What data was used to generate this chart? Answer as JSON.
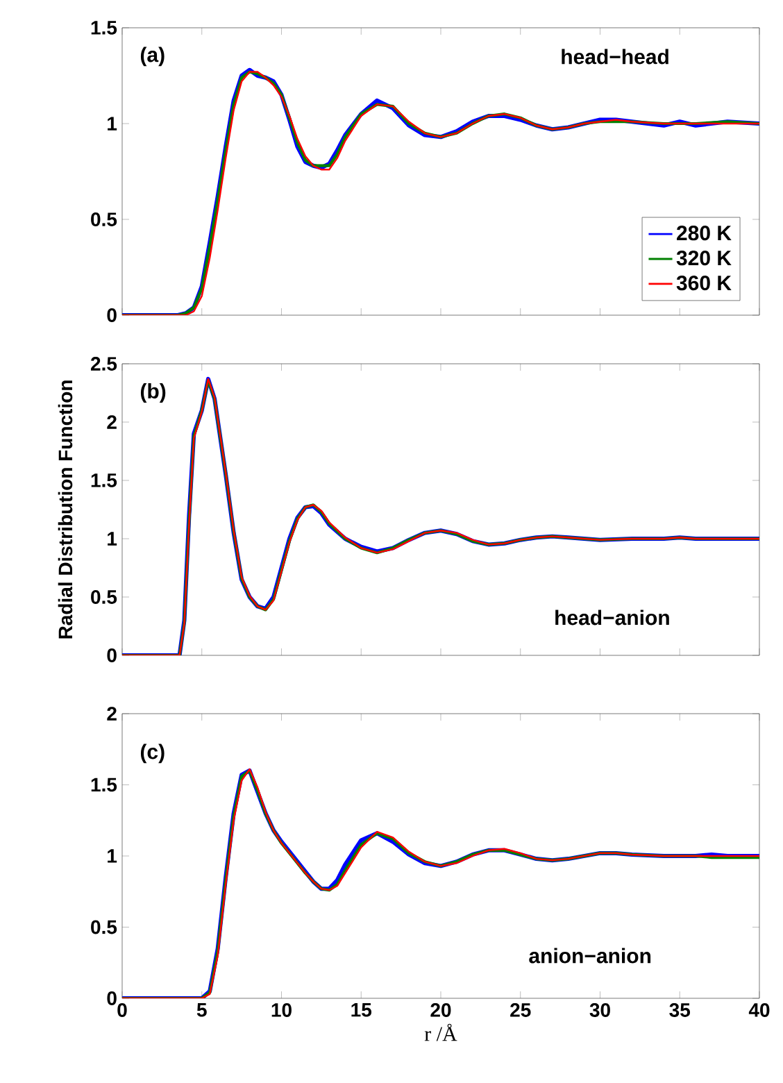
{
  "chart_data": [
    {
      "type": "line",
      "annotations": [
        "(a)",
        "head−head"
      ],
      "legend": "bottom right",
      "tick_labels": "y",
      "xlim": [
        0,
        40
      ],
      "xticks": [
        0,
        5,
        10,
        15,
        20,
        25,
        30,
        35,
        40
      ],
      "ylim": [
        0,
        1.5
      ],
      "yticks": [
        0,
        0.5,
        1,
        1.5
      ],
      "x": [
        0,
        3.5,
        4,
        4.5,
        5,
        5.5,
        6,
        6.5,
        7,
        7.5,
        8,
        8.5,
        9,
        9.5,
        10,
        10.5,
        11,
        11.5,
        12,
        12.5,
        13,
        13.5,
        14,
        15,
        16,
        17,
        18,
        19,
        20,
        21,
        22,
        23,
        24,
        25,
        26,
        27,
        28,
        29,
        30,
        31,
        32,
        34,
        35,
        36,
        38,
        40
      ],
      "series": [
        {
          "name": "280 K",
          "color": "#0000ff",
          "values": [
            0,
            0,
            0.01,
            0.04,
            0.15,
            0.38,
            0.62,
            0.88,
            1.12,
            1.25,
            1.28,
            1.25,
            1.24,
            1.22,
            1.15,
            1.02,
            0.88,
            0.8,
            0.78,
            0.77,
            0.79,
            0.86,
            0.94,
            1.05,
            1.12,
            1.08,
            0.99,
            0.94,
            0.93,
            0.96,
            1.01,
            1.04,
            1.04,
            1.02,
            0.99,
            0.97,
            0.98,
            1.0,
            1.02,
            1.02,
            1.01,
            0.99,
            1.01,
            0.99,
            1.01,
            1.0
          ]
        },
        {
          "name": "320 K",
          "color": "#008000",
          "values": [
            0,
            0,
            0.01,
            0.04,
            0.14,
            0.36,
            0.6,
            0.86,
            1.1,
            1.24,
            1.27,
            1.26,
            1.24,
            1.21,
            1.15,
            1.03,
            0.9,
            0.81,
            0.78,
            0.78,
            0.78,
            0.84,
            0.93,
            1.05,
            1.1,
            1.09,
            1.0,
            0.95,
            0.93,
            0.95,
            1.0,
            1.04,
            1.05,
            1.03,
            0.99,
            0.97,
            0.98,
            1.0,
            1.01,
            1.01,
            1.01,
            1.0,
            1.0,
            1.0,
            1.01,
            1.0
          ]
        },
        {
          "name": "360 K",
          "color": "#ff0000",
          "values": [
            0,
            0,
            0,
            0.02,
            0.1,
            0.3,
            0.55,
            0.82,
            1.07,
            1.22,
            1.27,
            1.27,
            1.24,
            1.2,
            1.14,
            1.04,
            0.92,
            0.83,
            0.78,
            0.76,
            0.76,
            0.82,
            0.91,
            1.04,
            1.1,
            1.09,
            1.01,
            0.95,
            0.93,
            0.95,
            1.0,
            1.04,
            1.05,
            1.03,
            0.99,
            0.97,
            0.98,
            1.0,
            1.01,
            1.02,
            1.01,
            1.0,
            1.0,
            1.0,
            1.0,
            1.0
          ]
        }
      ]
    },
    {
      "type": "line",
      "ylabel": "Radial Distribution Function",
      "annotations": [
        "(b)",
        "head−anion"
      ],
      "tick_labels": "y",
      "xlim": [
        0,
        40
      ],
      "xticks": [
        0,
        5,
        10,
        15,
        20,
        25,
        30,
        35,
        40
      ],
      "ylim": [
        0,
        2.5
      ],
      "yticks": [
        0,
        0.5,
        1,
        1.5,
        2,
        2.5
      ],
      "x": [
        0,
        3.6,
        3.9,
        4.2,
        4.5,
        5,
        5.4,
        5.8,
        6.5,
        7,
        7.5,
        8,
        8.5,
        9,
        9.5,
        10,
        10.5,
        11,
        11.5,
        12,
        12.5,
        13,
        14,
        15,
        16,
        17,
        18,
        19,
        20,
        21,
        22,
        23,
        24,
        25,
        26,
        27,
        28,
        30,
        32,
        34,
        35,
        36,
        38,
        40
      ],
      "series": [
        {
          "color": "#0000ff",
          "values": [
            0,
            0,
            0.3,
            1.2,
            1.9,
            2.1,
            2.37,
            2.2,
            1.55,
            1.05,
            0.65,
            0.5,
            0.42,
            0.4,
            0.5,
            0.75,
            1.0,
            1.18,
            1.27,
            1.28,
            1.22,
            1.12,
            1.0,
            0.93,
            0.89,
            0.92,
            0.99,
            1.05,
            1.07,
            1.04,
            0.98,
            0.95,
            0.96,
            0.99,
            1.01,
            1.02,
            1.01,
            0.99,
            1.0,
            1.0,
            1.01,
            1.0,
            1.0,
            1.0
          ]
        },
        {
          "color": "#008000",
          "values": [
            0,
            0,
            0.28,
            1.15,
            1.88,
            2.1,
            2.36,
            2.2,
            1.56,
            1.06,
            0.66,
            0.5,
            0.42,
            0.39,
            0.48,
            0.73,
            0.98,
            1.17,
            1.27,
            1.29,
            1.23,
            1.13,
            1.0,
            0.92,
            0.88,
            0.92,
            0.99,
            1.05,
            1.07,
            1.04,
            0.98,
            0.95,
            0.96,
            0.99,
            1.01,
            1.02,
            1.01,
            0.99,
            1.0,
            1.0,
            1.01,
            1.0,
            1.0,
            1.0
          ]
        },
        {
          "color": "#ff0000",
          "values": [
            0,
            0,
            0.27,
            1.12,
            1.86,
            2.09,
            2.37,
            2.21,
            1.57,
            1.07,
            0.67,
            0.51,
            0.42,
            0.39,
            0.47,
            0.72,
            0.97,
            1.16,
            1.27,
            1.29,
            1.24,
            1.14,
            1.01,
            0.92,
            0.88,
            0.91,
            0.98,
            1.05,
            1.07,
            1.05,
            0.99,
            0.95,
            0.96,
            0.99,
            1.01,
            1.02,
            1.01,
            0.99,
            1.0,
            1.0,
            1.01,
            1.0,
            1.0,
            1.0
          ]
        }
      ]
    },
    {
      "type": "line",
      "xlabel": "r  /Å",
      "annotations": [
        "(c)",
        "anion−anion"
      ],
      "xlim": [
        0,
        40
      ],
      "xticks": [
        0,
        5,
        10,
        15,
        20,
        25,
        30,
        35,
        40
      ],
      "ylim": [
        0,
        2
      ],
      "yticks": [
        0,
        0.5,
        1,
        1.5,
        2
      ],
      "x": [
        0,
        5,
        5.5,
        6,
        6.5,
        7,
        7.5,
        8,
        8.5,
        9,
        9.5,
        10,
        10.5,
        11,
        11.5,
        12,
        12.5,
        13,
        13.5,
        14,
        15,
        16,
        17,
        18,
        19,
        20,
        21,
        22,
        23,
        24,
        25,
        26,
        27,
        28,
        29,
        30,
        31,
        32,
        34,
        36,
        37,
        38,
        40
      ],
      "series": [
        {
          "color": "#0000ff",
          "values": [
            0,
            0,
            0.05,
            0.35,
            0.85,
            1.3,
            1.57,
            1.6,
            1.45,
            1.3,
            1.18,
            1.1,
            1.03,
            0.96,
            0.89,
            0.82,
            0.77,
            0.77,
            0.83,
            0.94,
            1.11,
            1.16,
            1.1,
            1.01,
            0.95,
            0.93,
            0.96,
            1.01,
            1.04,
            1.04,
            1.01,
            0.98,
            0.97,
            0.98,
            1.0,
            1.02,
            1.02,
            1.01,
            1.0,
            1.0,
            1.01,
            1.0,
            1.0
          ]
        },
        {
          "color": "#008000",
          "values": [
            0,
            0,
            0.04,
            0.33,
            0.83,
            1.28,
            1.56,
            1.6,
            1.46,
            1.3,
            1.18,
            1.09,
            1.02,
            0.95,
            0.88,
            0.82,
            0.77,
            0.76,
            0.8,
            0.9,
            1.08,
            1.16,
            1.12,
            1.02,
            0.96,
            0.93,
            0.96,
            1.01,
            1.04,
            1.04,
            1.01,
            0.98,
            0.97,
            0.98,
            1.0,
            1.02,
            1.02,
            1.01,
            1.0,
            1.0,
            0.99,
            0.99,
            0.99
          ]
        },
        {
          "color": "#ff0000",
          "values": [
            0,
            0,
            0.03,
            0.3,
            0.8,
            1.25,
            1.53,
            1.61,
            1.48,
            1.31,
            1.18,
            1.09,
            1.02,
            0.95,
            0.88,
            0.82,
            0.77,
            0.76,
            0.79,
            0.88,
            1.06,
            1.17,
            1.13,
            1.03,
            0.96,
            0.93,
            0.95,
            1.0,
            1.04,
            1.05,
            1.02,
            0.98,
            0.97,
            0.98,
            1.0,
            1.02,
            1.02,
            1.01,
            1.0,
            1.0,
            1.0,
            1.0,
            1.0
          ]
        }
      ]
    }
  ]
}
